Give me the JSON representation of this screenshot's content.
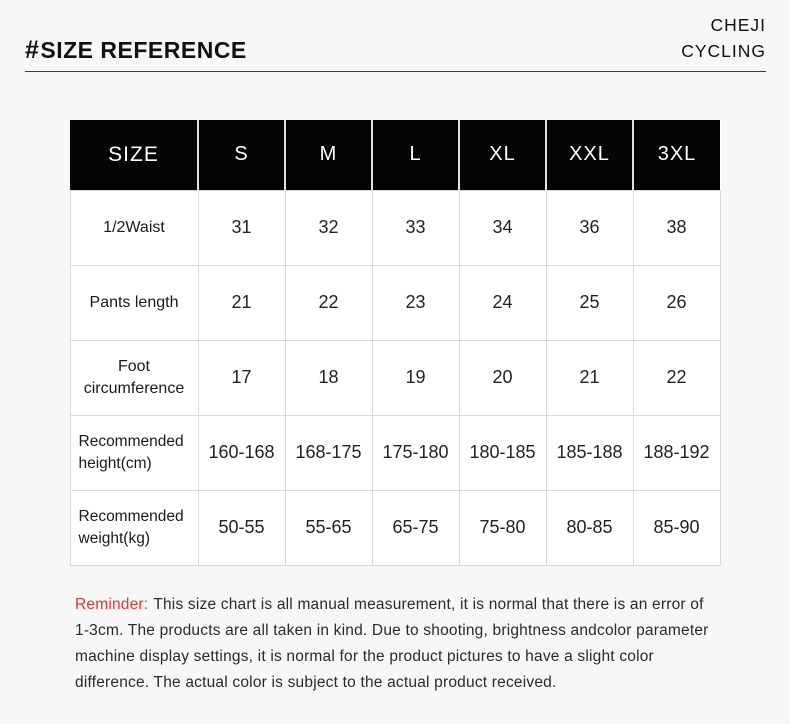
{
  "header": {
    "hash": "#",
    "title": "SIZE REFERENCE",
    "brand_line1": "CHEJI",
    "brand_line2": "CYCLING"
  },
  "table": {
    "columns": [
      "SIZE",
      "S",
      "M",
      "L",
      "XL",
      "XXL",
      "3XL"
    ],
    "rows": [
      {
        "label": "1/2Waist",
        "values": [
          "31",
          "32",
          "33",
          "34",
          "36",
          "38"
        ]
      },
      {
        "label": "Pants length",
        "values": [
          "21",
          "22",
          "23",
          "24",
          "25",
          "26"
        ]
      },
      {
        "label": "Foot circumference",
        "values": [
          "17",
          "18",
          "19",
          "20",
          "21",
          "22"
        ]
      },
      {
        "label": "Recommended height(cm)",
        "values": [
          "160-168",
          "168-175",
          "175-180",
          "180-185",
          "185-188",
          "188-192"
        ]
      },
      {
        "label": "Recommended weight(kg)",
        "values": [
          "50-55",
          "55-65",
          "65-75",
          "75-80",
          "80-85",
          "85-90"
        ]
      }
    ]
  },
  "reminder": {
    "label": "Reminder:",
    "text": "This size chart is all manual measurement, it is normal that there is an error of 1-3cm. The products are all taken in kind. Due to shooting, brightness andcolor parameter machine display settings, it is normal for the product pictures to have a slight color difference. The actual color is subject to the actual product received."
  },
  "colors": {
    "page_background": "#f7f7f7",
    "table_header_bg": "#050505",
    "table_header_text": "#ffffff",
    "cell_bg": "#ffffff",
    "cell_border": "#d9d9d9",
    "body_text": "#1f1f1f",
    "reminder_accent": "#d93a3a"
  }
}
